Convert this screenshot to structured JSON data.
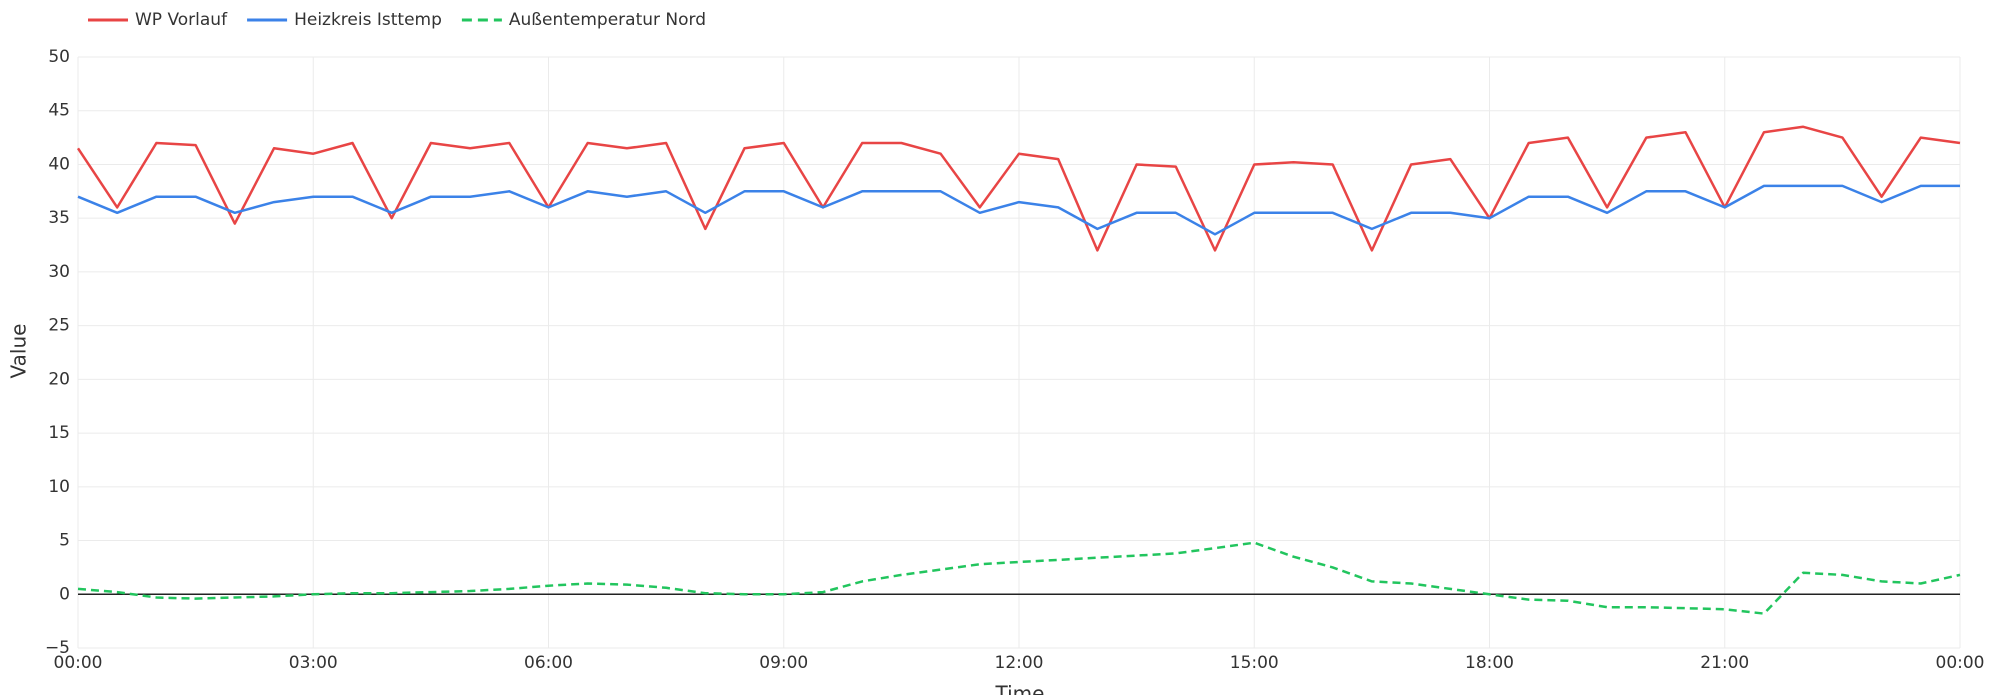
{
  "chart_data": {
    "type": "line",
    "x_label": "Time",
    "y_label": "Value",
    "x": [
      0,
      0.5,
      1,
      1.5,
      2,
      2.5,
      3,
      3.5,
      4,
      4.5,
      5,
      5.5,
      6,
      6.5,
      7,
      7.5,
      8,
      8.5,
      9,
      9.5,
      10,
      10.5,
      11,
      11.5,
      12,
      12.5,
      13,
      13.5,
      14,
      14.5,
      15,
      15.5,
      16,
      16.5,
      17,
      17.5,
      18,
      18.5,
      19,
      19.5,
      20,
      20.5,
      21,
      21.5,
      22,
      22.5,
      23,
      23.5,
      24
    ],
    "series": [
      {
        "name": "WP Vorlauf",
        "color": "#e84545",
        "dash": false,
        "values": [
          41.5,
          36,
          42,
          41.8,
          34.5,
          41.5,
          41,
          42,
          35,
          42,
          41.5,
          42,
          36,
          42,
          41.5,
          42,
          34,
          41.5,
          42,
          36,
          42,
          42,
          41,
          36,
          41,
          40.5,
          32,
          40,
          39.8,
          32,
          40,
          40.2,
          40,
          32,
          40,
          40.5,
          35,
          42,
          42.5,
          36,
          42.5,
          43,
          36,
          43,
          43.5,
          42.5,
          37,
          42.5,
          42
        ]
      },
      {
        "name": "Heizkreis Isttemp",
        "color": "#3b82e8",
        "dash": false,
        "values": [
          37,
          35.5,
          37,
          37,
          35.5,
          36.5,
          37,
          37,
          35.5,
          37,
          37,
          37.5,
          36,
          37.5,
          37,
          37.5,
          35.5,
          37.5,
          37.5,
          36,
          37.5,
          37.5,
          37.5,
          35.5,
          36.5,
          36,
          34,
          35.5,
          35.5,
          33.5,
          35.5,
          35.5,
          35.5,
          34,
          35.5,
          35.5,
          35,
          37,
          37,
          35.5,
          37.5,
          37.5,
          36,
          38,
          38,
          38,
          36.5,
          38,
          38
        ]
      },
      {
        "name": "Außentemperatur Nord",
        "color": "#22c55e",
        "dash": true,
        "values": [
          0.5,
          0.2,
          -0.3,
          -0.4,
          -0.3,
          -0.2,
          0,
          0.1,
          0.1,
          0.2,
          0.3,
          0.5,
          0.8,
          1.0,
          0.9,
          0.6,
          0.1,
          0,
          0,
          0.2,
          1.2,
          1.8,
          2.3,
          2.8,
          3.0,
          3.2,
          3.4,
          3.6,
          3.8,
          4.3,
          4.8,
          3.5,
          2.5,
          1.2,
          1.0,
          0.5,
          0,
          -0.5,
          -0.6,
          -1.2,
          -1.2,
          -1.3,
          -1.4,
          -1.8,
          2.0,
          1.8,
          1.2,
          1.0,
          1.8
        ]
      }
    ],
    "xlim": [
      0,
      24
    ],
    "xticks": [
      {
        "value": 0,
        "label": "00:00"
      },
      {
        "value": 3,
        "label": "03:00"
      },
      {
        "value": 6,
        "label": "06:00"
      },
      {
        "value": 9,
        "label": "09:00"
      },
      {
        "value": 12,
        "label": "12:00"
      },
      {
        "value": 15,
        "label": "15:00"
      },
      {
        "value": 18,
        "label": "18:00"
      },
      {
        "value": 21,
        "label": "21:00"
      },
      {
        "value": 24,
        "label": "00:00"
      }
    ],
    "ylim": [
      -5,
      50
    ],
    "yticks": [
      {
        "value": -5,
        "label": "−5"
      },
      0,
      5,
      10,
      15,
      20,
      25,
      30,
      35,
      40,
      45,
      50
    ],
    "grid": true,
    "legend": "top-left"
  }
}
